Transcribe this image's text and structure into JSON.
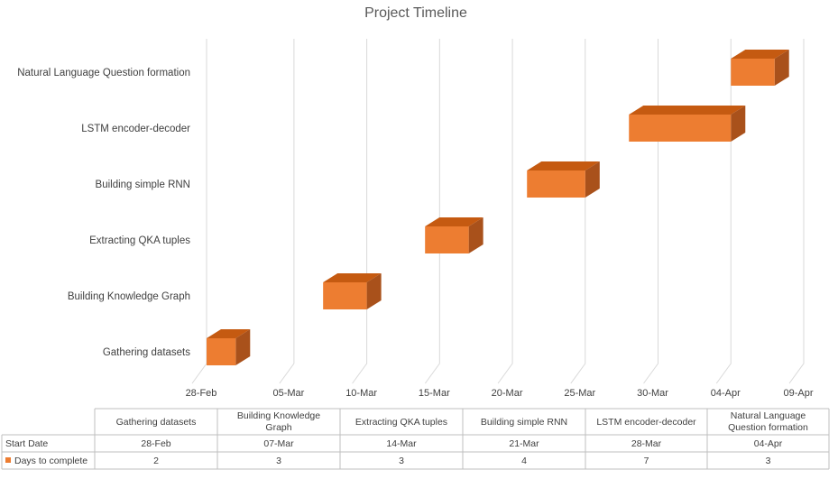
{
  "chart_data": {
    "type": "bar",
    "orientation": "horizontal",
    "style": "3d-gantt",
    "title": "Project Timeline",
    "categories": [
      "Gathering datasets",
      "Building Knowledge Graph",
      "Extracting QKA tuples",
      "Building simple RNN",
      "LSTM encoder-decoder",
      "Natural Language Question formation"
    ],
    "x_ticks": [
      "28-Feb",
      "05-Mar",
      "10-Mar",
      "15-Mar",
      "20-Mar",
      "25-Mar",
      "30-Mar",
      "04-Apr",
      "09-Apr"
    ],
    "xlim": [
      "28-Feb",
      "09-Apr"
    ],
    "grid": true,
    "series": [
      {
        "name": "Start Date",
        "hidden": true,
        "values": [
          "28-Feb",
          "07-Mar",
          "14-Mar",
          "21-Mar",
          "28-Mar",
          "04-Apr"
        ]
      },
      {
        "name": "Days to complete",
        "color": "#ED7D31",
        "values": [
          2,
          3,
          3,
          4,
          7,
          3
        ]
      }
    ],
    "table": {
      "headers": [
        "Gathering datasets",
        "Building Knowledge Graph",
        "Extracting QKA tuples",
        "Building simple RNN",
        "LSTM encoder-decoder",
        "Natural Language Question formation"
      ],
      "rows": [
        {
          "label": "Start Date",
          "values": [
            "28-Feb",
            "07-Mar",
            "14-Mar",
            "21-Mar",
            "28-Mar",
            "04-Apr"
          ]
        },
        {
          "label": "Days to complete",
          "values": [
            "2",
            "3",
            "3",
            "4",
            "7",
            "3"
          ]
        }
      ]
    }
  },
  "colors": {
    "bar_front": "#ED7D31",
    "bar_top": "#C55A11",
    "bar_side": "#A9511B"
  }
}
